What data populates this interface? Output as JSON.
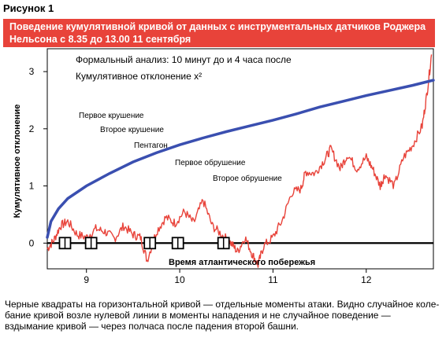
{
  "figure_label": "Рисунок 1",
  "caption": "Черные квадраты на горизонтальной кривой — отдельные моменты атаки. Видно случайное коле-бание кривой возле нулевой линии в моменты нападения и не случайное поведение — вздымание кривой — через полчаса после падения второй башни.",
  "colors": {
    "title_background": "#e8433a",
    "cumulative_curve": "#3a4fb0",
    "random_walk": "#e8433a",
    "zero_line": "#000000"
  },
  "chart_data": {
    "type": "line",
    "title": "Поведение кумулятивной кривой от данных с инструментальных датчиков Роджера Нельсона с 8.35 до 13.00 11 сентября",
    "annotation_lines": [
      "Формальный анализ: 10 минут до и 4 часа после",
      "Кумулятивное отклонение x²"
    ],
    "ylabel": "Кумулятивное отклонение",
    "xlabel": "",
    "xlim": [
      8.58,
      12.72
    ],
    "ylim": [
      -0.45,
      3.4
    ],
    "x_ticks": [
      9,
      10,
      11,
      12
    ],
    "y_ticks": [
      0,
      1,
      2,
      3
    ],
    "zero_line_label": "Время атлантического побережья",
    "series": [
      {
        "kind": "cumulative",
        "x": [
          8.58,
          8.62,
          8.7,
          8.8,
          9.0,
          9.25,
          9.5,
          9.75,
          10.0,
          10.25,
          10.5,
          10.75,
          11.0,
          11.25,
          11.5,
          11.75,
          12.0,
          12.25,
          12.5,
          12.72
        ],
        "values": [
          0.1,
          0.38,
          0.6,
          0.78,
          1.0,
          1.22,
          1.42,
          1.58,
          1.72,
          1.84,
          1.95,
          2.05,
          2.15,
          2.26,
          2.38,
          2.48,
          2.58,
          2.67,
          2.76,
          2.85
        ]
      },
      {
        "kind": "deviation",
        "x": [
          8.58,
          8.65,
          8.72,
          8.8,
          8.9,
          9.0,
          9.1,
          9.2,
          9.3,
          9.4,
          9.5,
          9.58,
          9.65,
          9.75,
          9.85,
          9.95,
          10.05,
          10.15,
          10.25,
          10.35,
          10.45,
          10.55,
          10.62,
          10.7,
          10.78,
          10.84,
          10.9,
          11.0,
          11.1,
          11.2,
          11.3,
          11.35,
          11.45,
          11.55,
          11.62,
          11.72,
          11.8,
          11.9,
          12.0,
          12.07,
          12.15,
          12.2,
          12.3,
          12.4,
          12.5,
          12.6,
          12.65,
          12.7
        ],
        "values": [
          -0.1,
          0.05,
          0.3,
          0.38,
          0.15,
          0.1,
          0.25,
          0.2,
          0.08,
          0.3,
          0.15,
          0.1,
          -0.3,
          0.2,
          0.45,
          0.35,
          0.55,
          0.35,
          0.75,
          0.3,
          0.15,
          0.0,
          -0.15,
          0.1,
          -0.2,
          -0.38,
          -0.05,
          0.1,
          0.4,
          0.88,
          0.95,
          1.25,
          1.22,
          1.45,
          1.65,
          1.3,
          1.55,
          1.3,
          1.5,
          1.3,
          1.0,
          1.2,
          1.0,
          1.5,
          1.72,
          2.05,
          2.6,
          3.3
        ]
      }
    ],
    "events": [
      {
        "x": 8.77,
        "label": "Первое крушение"
      },
      {
        "x": 9.05,
        "label": "Второе крушение"
      },
      {
        "x": 9.68,
        "label": "Пентагон"
      },
      {
        "x": 9.98,
        "label": "Первое обрушение"
      },
      {
        "x": 10.47,
        "label": "Второе обрушение"
      }
    ]
  }
}
